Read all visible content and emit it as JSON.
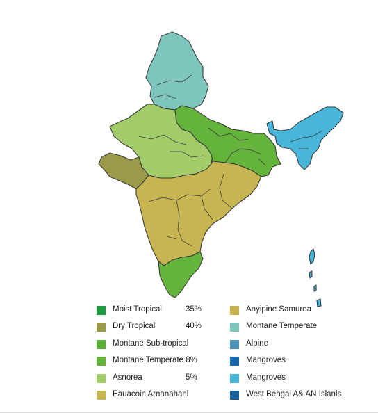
{
  "colors": {
    "moist_tropical": "#1f9a43",
    "dry_tropical": "#9a9a48",
    "montane_subtropical": "#5aae3a",
    "montane_temperate_green": "#64b33b",
    "asnorea": "#a2cc6a",
    "euacoin": "#c7b551",
    "anyipine": "#c5b24f",
    "montane_temperate_teal": "#7ec6bd",
    "alpine": "#4b94b7",
    "mangroves_dark": "#1668a8",
    "mangroves_light": "#48b6d9",
    "west_bengal": "#155e98",
    "border": "#3a3a3a"
  },
  "legend": {
    "left": [
      {
        "label": "Moist Tropical",
        "value": "35%",
        "color": "#1f9a43",
        "icon": "square-swatch"
      },
      {
        "label": "Dry Tropical",
        "value": "40%",
        "color": "#9a9a48",
        "icon": "square-swatch"
      },
      {
        "label": "Montane Sub-tropical",
        "value": "",
        "color": "#5aae3a",
        "icon": "square-swatch"
      },
      {
        "label": "Montane Temperate 8%",
        "value": "",
        "color": "#64b33b",
        "icon": "square-swatch"
      },
      {
        "label": "Asnorea",
        "value": "5%",
        "color": "#a2cc6a",
        "icon": "square-swatch"
      },
      {
        "label": "Eauacoin Arnanahanl",
        "value": "",
        "color": "#c7b551",
        "icon": "square-swatch"
      }
    ],
    "right": [
      {
        "label": "Anyipine Samurea",
        "color": "#c5b24f",
        "icon": "square-swatch"
      },
      {
        "label": "Montane Temperate",
        "color": "#7ec6bd",
        "icon": "square-swatch"
      },
      {
        "label": "Alpine",
        "color": "#4b94b7",
        "icon": "square-swatch"
      },
      {
        "label": "Mangroves",
        "color": "#1668a8",
        "icon": "square-swatch"
      },
      {
        "label": "Mangroves",
        "color": "#48b6d9",
        "icon": "square-swatch"
      },
      {
        "label": "West Bengal A& AN Islanls",
        "color": "#155e98",
        "icon": "square-swatch"
      }
    ]
  }
}
